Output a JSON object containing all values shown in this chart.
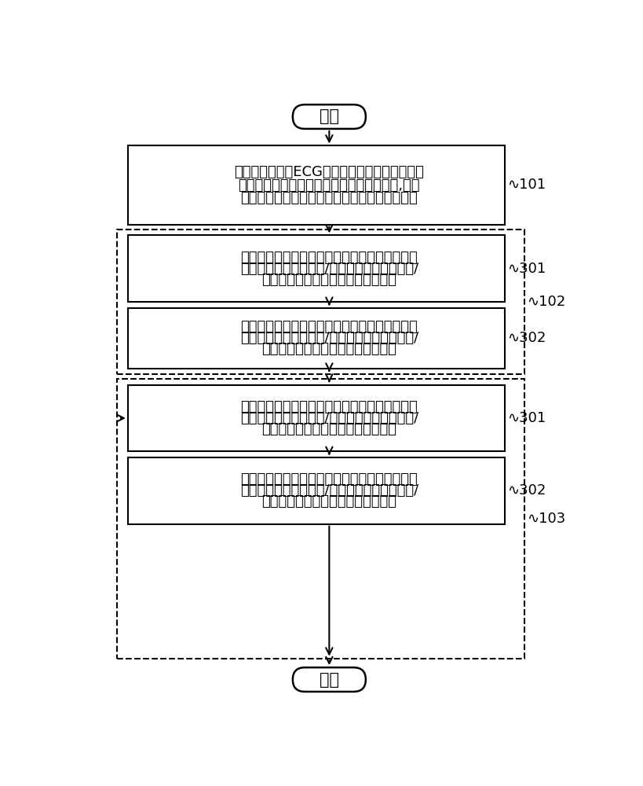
{
  "background_color": "#ffffff",
  "start_text": "开始",
  "end_text": "结束",
  "box101_line1": "对待检测心电图ECG信号应用波峰提取算子和波",
  "box101_line2": "谷提取算子分别提取其波峰信号和波谷信号,并将",
  "box101_line3": "波峰信号和波谷信号的和値信号确定为中间信号",
  "box301_line1": "若查找结果显示上述起点位置开始向前第一信号",
  "box301_line2": "区间范围内存在波峰和/或波谷，则判断波峰和/",
  "box301_line3": "或波谷的宽度是否大于第一宽度阈値",
  "box302_line1": "若查找结果显示上述起点位置开始向前第一信号",
  "box302_line2": "区间范围内存在波峰和/或波谷，则判断波峰和/",
  "box302_line3": "或波谷的宽度是否大于第一宽度阈値",
  "label101": "101",
  "label102": "102",
  "label103": "103",
  "label301a": "301",
  "label302a": "302",
  "label301b": "301",
  "label302b": "302",
  "font_size_box": 13,
  "font_size_label": 13,
  "font_size_terminal": 15
}
